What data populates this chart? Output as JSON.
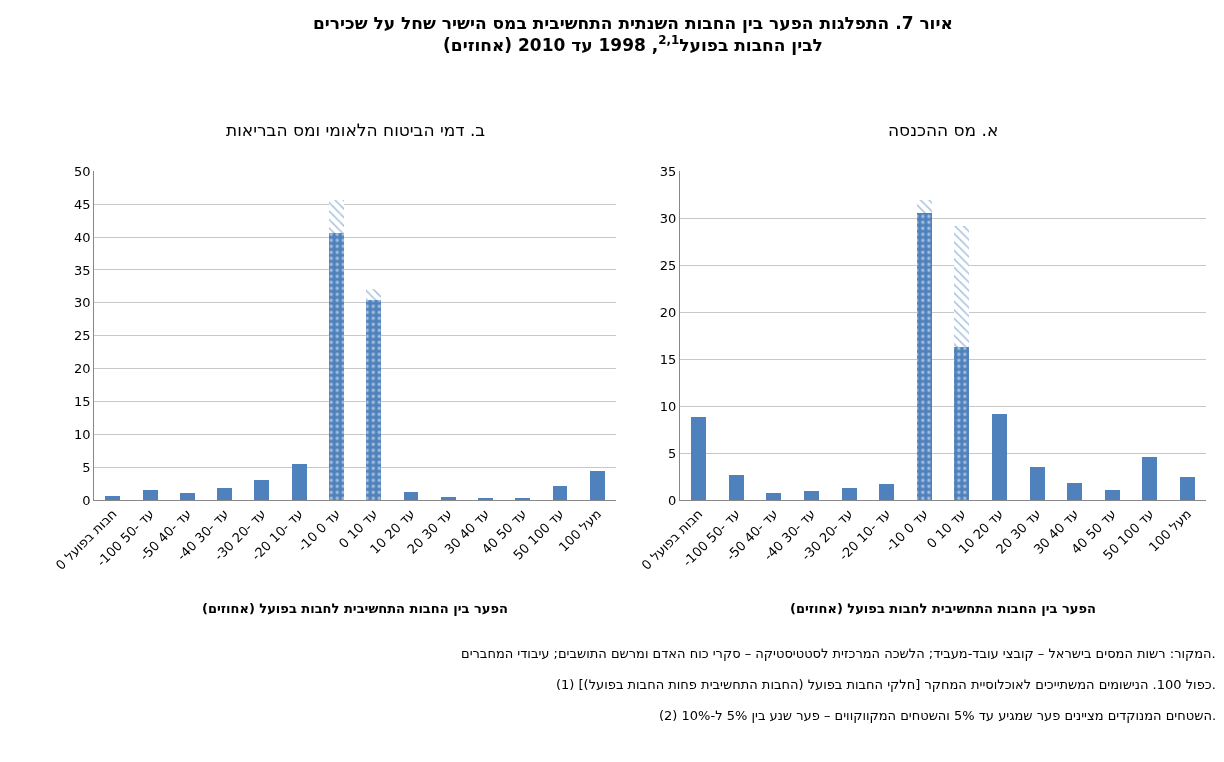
{
  "chart_data": [
    {
      "type": "bar",
      "title": "איור 7. התפלגות הפער בין החבות השנתית התחשיבית במס הישיר שחל על שכירים\nלבין החבות בפועל$^{2,1}$, 1998 עד 2010 (אחוזים)",
      "subtitle": "א. מס ההכנסה",
      "xlabel": "הפער בין החבות התחשיבית לחבות בפועל (אחוזים)",
      "categories": [
        "חבות בפועל 0",
        "-100 עד -50",
        "-50 עד -40",
        "-40 עד -30",
        "-30 עד -20",
        "-20 עד -10",
        "-10 עד 0",
        "0 עד 10",
        "10 עד 20",
        "20 עד 30",
        "30 עד 40",
        "40 עד 50",
        "50 עד 100",
        "מעל 100"
      ],
      "stacked": true,
      "ylim": [
        0,
        35
      ],
      "yticks": [
        0,
        5,
        10,
        15,
        20,
        25,
        30,
        35
      ],
      "grid": "y",
      "series": [
        {
          "color": "#4f81bd",
          "values": [
            8.8,
            2.7,
            0.8,
            1.0,
            1.3,
            1.7,
            null,
            null,
            9.2,
            3.5,
            1.8,
            1.1,
            4.6,
            2.4
          ]
        },
        {
          "color": "#4f81bd",
          "values": [
            null,
            null,
            null,
            null,
            null,
            null,
            30.6,
            16.3,
            null,
            null,
            null,
            null,
            null,
            null
          ]
        },
        {
          "color": "#4f81bd",
          "values": [
            null,
            null,
            null,
            null,
            null,
            null,
            1.3,
            12.9,
            null,
            null,
            null,
            null,
            null,
            null
          ]
        }
      ],
      "annotations": [
        "המקור: רשות המסים בישראל – קובצי עובד-מעביד; הלשכה המרכזית לסטטיסטיקה – סקרי כוח האדם ומרשם התושבים; עיבודי המחברים.",
        "(1) [(החבות התחשיבית פחות החבות בפועל) חלקי החבות בפועל] כפול 100. הנישומים המשתייכים לאוכלוסיית המחקר.",
        "(2) השטחים המנוקדים מציינים פער שמגיע עד 5% והשטחים המקווקווים – פער שנע בין 5% ל-10%."
      ]
    },
    {
      "type": "bar",
      "subtitle": "ב. דמי הביטוח הלאומי ומס הבריאות",
      "xlabel": "הפער בין החבות התחשיבית לחבות בפועל (אחוזים)",
      "categories": [
        "חבות בפועל 0",
        "-100 עד -50",
        "-50 עד -40",
        "-40 עד -30",
        "-30 עד -20",
        "-20 עד -10",
        "-10 עד 0",
        "0 עד 10",
        "10 עד 20",
        "20 עד 30",
        "30 עד 40",
        "40 עד 50",
        "50 עד 100",
        "מעל 100"
      ],
      "stacked": true,
      "ylim": [
        0,
        50
      ],
      "yticks": [
        0,
        5,
        10,
        15,
        20,
        25,
        30,
        35,
        40,
        45,
        50
      ],
      "grid": "y",
      "series": [
        {
          "color": "#4f81bd",
          "values": [
            0.6,
            1.5,
            1.0,
            1.9,
            3.0,
            5.5,
            null,
            null,
            1.2,
            0.5,
            0.3,
            0.3,
            2.1,
            4.4
          ]
        },
        {
          "color": "#4f81bd",
          "values": [
            null,
            null,
            null,
            null,
            null,
            null,
            40.6,
            30.4,
            null,
            null,
            null,
            null,
            null,
            null
          ]
        },
        {
          "color": "#4f81bd",
          "values": [
            null,
            null,
            null,
            null,
            null,
            null,
            5.1,
            1.7,
            null,
            null,
            null,
            null,
            null,
            null
          ]
        }
      ]
    }
  ]
}
